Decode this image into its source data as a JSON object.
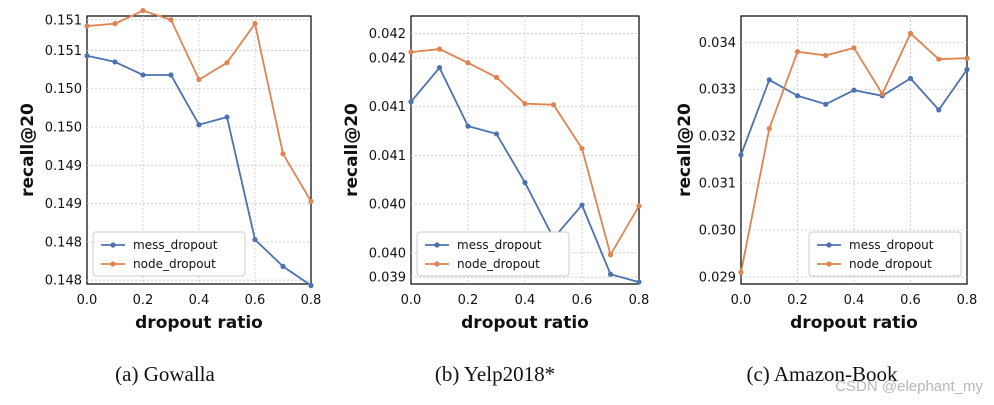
{
  "colors": {
    "mess": "#4c72b0",
    "node": "#dd8452"
  },
  "watermark": "CSDN @elephant_my",
  "chart_data": [
    {
      "type": "line",
      "caption": "(a)  Gowalla",
      "xlabel": "dropout ratio",
      "ylabel": "recall@20",
      "xlim": [
        0,
        0.8
      ],
      "ylim": [
        0.14785,
        0.15135
      ],
      "x_ticks": [
        "0.0",
        "0.2",
        "0.4",
        "0.6",
        "0.8"
      ],
      "y_ticks": [
        {
          "v": 0.1479,
          "label": "0.148"
        },
        {
          "v": 0.1484,
          "label": "0.148"
        },
        {
          "v": 0.1489,
          "label": "0.149"
        },
        {
          "v": 0.1494,
          "label": "0.149"
        },
        {
          "v": 0.1499,
          "label": "0.150"
        },
        {
          "v": 0.1504,
          "label": "0.150"
        },
        {
          "v": 0.1509,
          "label": "0.151"
        },
        {
          "v": 0.1513,
          "label": "0.151"
        }
      ],
      "legend_position": "lower-left",
      "x": [
        0.0,
        0.1,
        0.2,
        0.3,
        0.4,
        0.5,
        0.6,
        0.7,
        0.8
      ],
      "series": [
        {
          "name": "mess_dropout",
          "color_key": "mess",
          "values": [
            0.15083,
            0.15075,
            0.15058,
            0.15058,
            0.14993,
            0.15003,
            0.14843,
            0.14808,
            0.14783
          ]
        },
        {
          "name": "node_dropout",
          "color_key": "node",
          "values": [
            0.15122,
            0.15125,
            0.15142,
            0.1513,
            0.15052,
            0.15074,
            0.15125,
            0.14955,
            0.14893
          ]
        }
      ]
    },
    {
      "type": "line",
      "caption": "(b)  Yelp2018*",
      "xlabel": "dropout ratio",
      "ylabel": "recall@20",
      "xlim": [
        0,
        0.8
      ],
      "ylim": [
        0.03943,
        0.04218
      ],
      "x_ticks": [
        "0.0",
        "0.2",
        "0.4",
        "0.6",
        "0.8"
      ],
      "y_ticks": [
        {
          "v": 0.0395,
          "label": "0.039"
        },
        {
          "v": 0.03975,
          "label": "0.040"
        },
        {
          "v": 0.04025,
          "label": "0.040"
        },
        {
          "v": 0.04075,
          "label": "0.041"
        },
        {
          "v": 0.04125,
          "label": "0.041"
        },
        {
          "v": 0.04175,
          "label": "0.042"
        },
        {
          "v": 0.042,
          "label": "0.042"
        }
      ],
      "legend_position": "lower-left",
      "x": [
        0.0,
        0.1,
        0.2,
        0.3,
        0.4,
        0.5,
        0.6,
        0.7,
        0.8
      ],
      "series": [
        {
          "name": "mess_dropout",
          "color_key": "mess",
          "values": [
            0.0413,
            0.04165,
            0.04105,
            0.04097,
            0.04047,
            0.0399,
            0.04024,
            0.03953,
            0.03945
          ]
        },
        {
          "name": "node_dropout",
          "color_key": "node",
          "values": [
            0.04181,
            0.04184,
            0.0417,
            0.04155,
            0.04128,
            0.04127,
            0.04082,
            0.03973,
            0.04023
          ]
        }
      ]
    },
    {
      "type": "line",
      "caption": "(c)  Amazon-Book",
      "xlabel": "dropout ratio",
      "ylabel": "recall@20",
      "xlim": [
        0,
        0.8
      ],
      "ylim": [
        0.02885,
        0.03456
      ],
      "x_ticks": [
        "0.0",
        "0.2",
        "0.4",
        "0.6",
        "0.8"
      ],
      "y_ticks": [
        {
          "v": 0.029,
          "label": "0.029"
        },
        {
          "v": 0.03,
          "label": "0.030"
        },
        {
          "v": 0.031,
          "label": "0.031"
        },
        {
          "v": 0.032,
          "label": "0.032"
        },
        {
          "v": 0.033,
          "label": "0.033"
        },
        {
          "v": 0.034,
          "label": "0.034"
        }
      ],
      "legend_position": "lower-right",
      "x": [
        0.0,
        0.1,
        0.2,
        0.3,
        0.4,
        0.5,
        0.6,
        0.7,
        0.8
      ],
      "series": [
        {
          "name": "mess_dropout",
          "color_key": "mess",
          "values": [
            0.0316,
            0.0332,
            0.03286,
            0.03268,
            0.03298,
            0.03286,
            0.03323,
            0.03256,
            0.03342
          ]
        },
        {
          "name": "node_dropout",
          "color_key": "node",
          "values": [
            0.0291,
            0.03216,
            0.0338,
            0.03372,
            0.03388,
            0.0329,
            0.03419,
            0.03364,
            0.03366
          ]
        }
      ]
    }
  ]
}
